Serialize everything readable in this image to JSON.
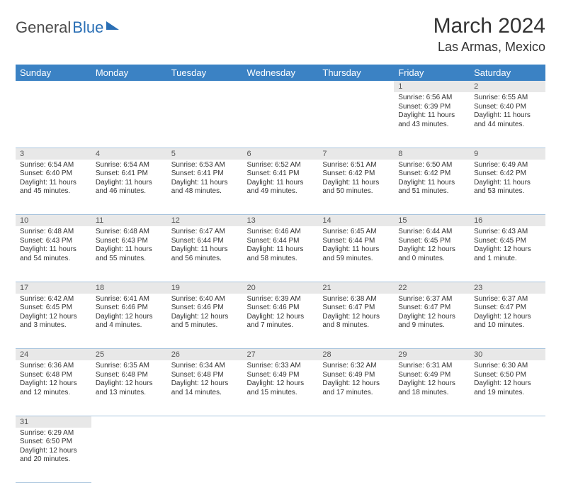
{
  "logo": {
    "part1": "General",
    "part2": "Blue"
  },
  "title": "March 2024",
  "location": "Las Armas, Mexico",
  "colors": {
    "header_bg": "#3b82c4",
    "daynum_bg": "#e8e8e8",
    "row_border": "#a8c4dd",
    "logo_accent": "#2a6fb5"
  },
  "weekdays": [
    "Sunday",
    "Monday",
    "Tuesday",
    "Wednesday",
    "Thursday",
    "Friday",
    "Saturday"
  ],
  "weeks": [
    [
      null,
      null,
      null,
      null,
      null,
      {
        "n": "1",
        "sr": "Sunrise: 6:56 AM",
        "ss": "Sunset: 6:39 PM",
        "dl": "Daylight: 11 hours and 43 minutes."
      },
      {
        "n": "2",
        "sr": "Sunrise: 6:55 AM",
        "ss": "Sunset: 6:40 PM",
        "dl": "Daylight: 11 hours and 44 minutes."
      }
    ],
    [
      {
        "n": "3",
        "sr": "Sunrise: 6:54 AM",
        "ss": "Sunset: 6:40 PM",
        "dl": "Daylight: 11 hours and 45 minutes."
      },
      {
        "n": "4",
        "sr": "Sunrise: 6:54 AM",
        "ss": "Sunset: 6:41 PM",
        "dl": "Daylight: 11 hours and 46 minutes."
      },
      {
        "n": "5",
        "sr": "Sunrise: 6:53 AM",
        "ss": "Sunset: 6:41 PM",
        "dl": "Daylight: 11 hours and 48 minutes."
      },
      {
        "n": "6",
        "sr": "Sunrise: 6:52 AM",
        "ss": "Sunset: 6:41 PM",
        "dl": "Daylight: 11 hours and 49 minutes."
      },
      {
        "n": "7",
        "sr": "Sunrise: 6:51 AM",
        "ss": "Sunset: 6:42 PM",
        "dl": "Daylight: 11 hours and 50 minutes."
      },
      {
        "n": "8",
        "sr": "Sunrise: 6:50 AM",
        "ss": "Sunset: 6:42 PM",
        "dl": "Daylight: 11 hours and 51 minutes."
      },
      {
        "n": "9",
        "sr": "Sunrise: 6:49 AM",
        "ss": "Sunset: 6:42 PM",
        "dl": "Daylight: 11 hours and 53 minutes."
      }
    ],
    [
      {
        "n": "10",
        "sr": "Sunrise: 6:48 AM",
        "ss": "Sunset: 6:43 PM",
        "dl": "Daylight: 11 hours and 54 minutes."
      },
      {
        "n": "11",
        "sr": "Sunrise: 6:48 AM",
        "ss": "Sunset: 6:43 PM",
        "dl": "Daylight: 11 hours and 55 minutes."
      },
      {
        "n": "12",
        "sr": "Sunrise: 6:47 AM",
        "ss": "Sunset: 6:44 PM",
        "dl": "Daylight: 11 hours and 56 minutes."
      },
      {
        "n": "13",
        "sr": "Sunrise: 6:46 AM",
        "ss": "Sunset: 6:44 PM",
        "dl": "Daylight: 11 hours and 58 minutes."
      },
      {
        "n": "14",
        "sr": "Sunrise: 6:45 AM",
        "ss": "Sunset: 6:44 PM",
        "dl": "Daylight: 11 hours and 59 minutes."
      },
      {
        "n": "15",
        "sr": "Sunrise: 6:44 AM",
        "ss": "Sunset: 6:45 PM",
        "dl": "Daylight: 12 hours and 0 minutes."
      },
      {
        "n": "16",
        "sr": "Sunrise: 6:43 AM",
        "ss": "Sunset: 6:45 PM",
        "dl": "Daylight: 12 hours and 1 minute."
      }
    ],
    [
      {
        "n": "17",
        "sr": "Sunrise: 6:42 AM",
        "ss": "Sunset: 6:45 PM",
        "dl": "Daylight: 12 hours and 3 minutes."
      },
      {
        "n": "18",
        "sr": "Sunrise: 6:41 AM",
        "ss": "Sunset: 6:46 PM",
        "dl": "Daylight: 12 hours and 4 minutes."
      },
      {
        "n": "19",
        "sr": "Sunrise: 6:40 AM",
        "ss": "Sunset: 6:46 PM",
        "dl": "Daylight: 12 hours and 5 minutes."
      },
      {
        "n": "20",
        "sr": "Sunrise: 6:39 AM",
        "ss": "Sunset: 6:46 PM",
        "dl": "Daylight: 12 hours and 7 minutes."
      },
      {
        "n": "21",
        "sr": "Sunrise: 6:38 AM",
        "ss": "Sunset: 6:47 PM",
        "dl": "Daylight: 12 hours and 8 minutes."
      },
      {
        "n": "22",
        "sr": "Sunrise: 6:37 AM",
        "ss": "Sunset: 6:47 PM",
        "dl": "Daylight: 12 hours and 9 minutes."
      },
      {
        "n": "23",
        "sr": "Sunrise: 6:37 AM",
        "ss": "Sunset: 6:47 PM",
        "dl": "Daylight: 12 hours and 10 minutes."
      }
    ],
    [
      {
        "n": "24",
        "sr": "Sunrise: 6:36 AM",
        "ss": "Sunset: 6:48 PM",
        "dl": "Daylight: 12 hours and 12 minutes."
      },
      {
        "n": "25",
        "sr": "Sunrise: 6:35 AM",
        "ss": "Sunset: 6:48 PM",
        "dl": "Daylight: 12 hours and 13 minutes."
      },
      {
        "n": "26",
        "sr": "Sunrise: 6:34 AM",
        "ss": "Sunset: 6:48 PM",
        "dl": "Daylight: 12 hours and 14 minutes."
      },
      {
        "n": "27",
        "sr": "Sunrise: 6:33 AM",
        "ss": "Sunset: 6:49 PM",
        "dl": "Daylight: 12 hours and 15 minutes."
      },
      {
        "n": "28",
        "sr": "Sunrise: 6:32 AM",
        "ss": "Sunset: 6:49 PM",
        "dl": "Daylight: 12 hours and 17 minutes."
      },
      {
        "n": "29",
        "sr": "Sunrise: 6:31 AM",
        "ss": "Sunset: 6:49 PM",
        "dl": "Daylight: 12 hours and 18 minutes."
      },
      {
        "n": "30",
        "sr": "Sunrise: 6:30 AM",
        "ss": "Sunset: 6:50 PM",
        "dl": "Daylight: 12 hours and 19 minutes."
      }
    ],
    [
      {
        "n": "31",
        "sr": "Sunrise: 6:29 AM",
        "ss": "Sunset: 6:50 PM",
        "dl": "Daylight: 12 hours and 20 minutes."
      },
      null,
      null,
      null,
      null,
      null,
      null
    ]
  ]
}
